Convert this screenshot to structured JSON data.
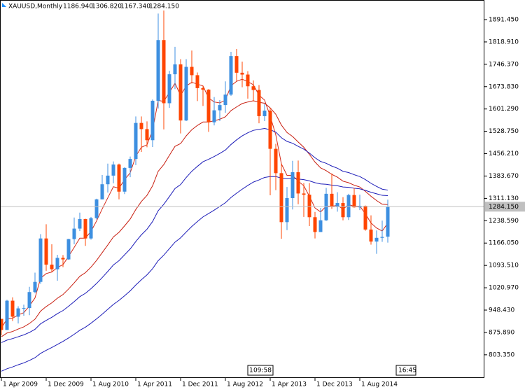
{
  "chart_data": {
    "type": "candlestick",
    "title": "XAUUSD,Monthly",
    "last_bar_labels": [
      "1186.940",
      "1306.820",
      "1167.340",
      "1284.150"
    ],
    "annotations": [
      "1",
      "09:58",
      "16:45"
    ],
    "up_color": "#3d8fe0",
    "down_color": "#ff4500",
    "categories": [
      "1 Apr 2009",
      null,
      null,
      null,
      null,
      null,
      null,
      null,
      "1 Dec 2009",
      null,
      null,
      null,
      null,
      null,
      null,
      null,
      "1 Aug 2010",
      null,
      null,
      null,
      null,
      null,
      null,
      null,
      "1 Apr 2011",
      null,
      null,
      null,
      null,
      null,
      null,
      null,
      "1 Dec 2011",
      null,
      null,
      null,
      null,
      null,
      null,
      null,
      "1 Aug 2012",
      null,
      null,
      null,
      null,
      null,
      null,
      null,
      "1 Apr 2013",
      null,
      null,
      null,
      null,
      null,
      null,
      null,
      "1 Dec 2013",
      null,
      null,
      null,
      null,
      null,
      null,
      null,
      "1 Aug 2014",
      null,
      null,
      null,
      null,
      null
    ],
    "open": [
      920,
      884,
      979,
      927,
      954,
      955,
      1007,
      1040,
      1181,
      1096,
      1081,
      1118,
      1113,
      1179,
      1213,
      1244,
      1181,
      1247,
      1308,
      1357,
      1385,
      1421,
      1333,
      1410,
      1439,
      1556,
      1536,
      1500,
      1628,
      1825,
      1620,
      1714,
      1746,
      1564,
      1738,
      1711,
      1669,
      1664,
      1558,
      1597,
      1614,
      1648,
      1773,
      1719,
      1713,
      1675,
      1663,
      1578,
      1596,
      1472,
      1393,
      1234,
      1312,
      1396,
      1327,
      1323,
      1250,
      1202,
      1240,
      1326,
      1284,
      1296,
      1250,
      1322,
      1282,
      1287,
      1210,
      1171,
      1183,
      1186.94
    ],
    "high": [
      920,
      982,
      990,
      961,
      966,
      1024,
      1070,
      1195,
      1227,
      1162,
      1128,
      1127,
      1180,
      1249,
      1265,
      1245,
      1251,
      1310,
      1387,
      1424,
      1431,
      1424,
      1412,
      1447,
      1577,
      1577,
      1561,
      1632,
      1911,
      1921,
      1725,
      1803,
      1763,
      1763,
      1791,
      1720,
      1677,
      1666,
      1640,
      1630,
      1691,
      1787,
      1796,
      1755,
      1724,
      1694,
      1679,
      1617,
      1605,
      1488,
      1424,
      1348,
      1433,
      1434,
      1361,
      1361,
      1267,
      1280,
      1345,
      1392,
      1331,
      1315,
      1326,
      1345,
      1323,
      1288,
      1256,
      1207,
      1239,
      1306.82
    ],
    "low": [
      866,
      884,
      913,
      905,
      930,
      932,
      1003,
      1034,
      1076,
      1072,
      1044,
      1088,
      1112,
      1162,
      1205,
      1157,
      1177,
      1243,
      1308,
      1330,
      1360,
      1308,
      1325,
      1380,
      1419,
      1462,
      1477,
      1478,
      1603,
      1535,
      1605,
      1666,
      1522,
      1562,
      1684,
      1627,
      1611,
      1527,
      1548,
      1562,
      1589,
      1644,
      1692,
      1672,
      1635,
      1626,
      1555,
      1562,
      1321,
      1338,
      1180,
      1208,
      1275,
      1292,
      1251,
      1221,
      1181,
      1202,
      1238,
      1277,
      1268,
      1240,
      1241,
      1281,
      1273,
      1206,
      1161,
      1131,
      1170,
      1167.34
    ],
    "close": [
      884,
      979,
      927,
      954,
      955,
      1007,
      1040,
      1181,
      1096,
      1081,
      1118,
      1113,
      1179,
      1213,
      1244,
      1181,
      1247,
      1308,
      1357,
      1385,
      1421,
      1333,
      1410,
      1439,
      1556,
      1536,
      1500,
      1628,
      1825,
      1620,
      1714,
      1746,
      1564,
      1738,
      1711,
      1669,
      1664,
      1558,
      1597,
      1614,
      1648,
      1773,
      1719,
      1713,
      1675,
      1663,
      1578,
      1596,
      1472,
      1393,
      1234,
      1312,
      1396,
      1327,
      1323,
      1250,
      1202,
      1240,
      1326,
      1284,
      1296,
      1250,
      1322,
      1282,
      1287,
      1210,
      1171,
      1183,
      1186,
      1284.15
    ],
    "lines": [
      {
        "color": "#d42a1a",
        "values": [
          890,
          920,
          922,
          933,
          940,
          962,
          988,
          1052,
          1067,
          1072,
          1087,
          1096,
          1123,
          1152,
          1182,
          1182,
          1204,
          1238,
          1277,
          1313,
          1349,
          1344,
          1372,
          1394,
          1448,
          1477,
          1485,
          1532,
          1629,
          1626,
          1655,
          1685,
          1645,
          1676,
          1688,
          1682,
          1676,
          1637,
          1624,
          1621,
          1630,
          1677,
          1691,
          1698,
          1690,
          1680,
          1646,
          1630,
          1578,
          1517,
          1423,
          1386,
          1386,
          1367,
          1352,
          1318,
          1280,
          1267,
          1286,
          1285,
          1289,
          1276,
          1291,
          1285,
          1286,
          1261,
          1231,
          1215,
          1205,
          1231
        ]
      },
      {
        "color": "#c81e10",
        "values": [
          862,
          874,
          879,
          887,
          894,
          905,
          919,
          945,
          960,
          972,
          987,
          999,
          1017,
          1037,
          1058,
          1070,
          1088,
          1110,
          1135,
          1160,
          1186,
          1201,
          1222,
          1244,
          1275,
          1301,
          1321,
          1352,
          1399,
          1421,
          1451,
          1480,
          1489,
          1514,
          1534,
          1548,
          1559,
          1559,
          1563,
          1568,
          1576,
          1596,
          1608,
          1619,
          1624,
          1628,
          1623,
          1620,
          1605,
          1584,
          1549,
          1525,
          1512,
          1494,
          1477,
          1454,
          1429,
          1410,
          1401,
          1389,
          1380,
          1367,
          1362,
          1354,
          1348,
          1334,
          1318,
          1304,
          1292,
          1291
        ]
      },
      {
        "color": "#1c1cb8",
        "values": [
          843,
          851,
          856,
          862,
          868,
          876,
          886,
          904,
          915,
          925,
          937,
          947,
          961,
          976,
          992,
          1003,
          1018,
          1035,
          1054,
          1074,
          1095,
          1109,
          1128,
          1147,
          1171,
          1193,
          1211,
          1236,
          1271,
          1292,
          1317,
          1343,
          1356,
          1379,
          1399,
          1415,
          1430,
          1438,
          1447,
          1457,
          1468,
          1486,
          1501,
          1514,
          1524,
          1532,
          1535,
          1538,
          1534,
          1526,
          1508,
          1496,
          1490,
          1480,
          1471,
          1458,
          1443,
          1431,
          1425,
          1416,
          1409,
          1399,
          1395,
          1388,
          1382,
          1372,
          1360,
          1350,
          1341,
          1338
        ]
      },
      {
        "color": "#1c1cb8",
        "values": [
          750,
          758,
          764,
          771,
          777,
          785,
          794,
          808,
          818,
          827,
          837,
          847,
          858,
          870,
          883,
          893,
          906,
          920,
          935,
          951,
          967,
          980,
          995,
          1011,
          1030,
          1047,
          1063,
          1083,
          1109,
          1127,
          1148,
          1169,
          1183,
          1202,
          1220,
          1236,
          1251,
          1262,
          1273,
          1285,
          1297,
          1314,
          1328,
          1341,
          1353,
          1364,
          1371,
          1379,
          1382,
          1382,
          1377,
          1375,
          1376,
          1374,
          1372,
          1368,
          1362,
          1358,
          1357,
          1354,
          1352,
          1348,
          1347,
          1344,
          1342,
          1337,
          1331,
          1326,
          1321,
          1320
        ]
      }
    ],
    "ylim": [
      728.04,
      1955.07
    ],
    "yticks": [
      {
        "value": 1891.45,
        "label": "1891.450"
      },
      {
        "value": 1818.91,
        "label": "1818.910"
      },
      {
        "value": 1746.37,
        "label": "1746.370"
      },
      {
        "value": 1673.83,
        "label": "1673.830"
      },
      {
        "value": 1601.29,
        "label": "1601.290"
      },
      {
        "value": 1528.75,
        "label": "1528.750"
      },
      {
        "value": 1456.21,
        "label": "1456.210"
      },
      {
        "value": 1383.67,
        "label": "1383.670"
      },
      {
        "value": 1311.13,
        "label": "1311.130"
      },
      {
        "value": 1238.59,
        "label": "1238.590"
      },
      {
        "value": 1166.05,
        "label": "1166.050"
      },
      {
        "value": 1093.51,
        "label": "1093.510"
      },
      {
        "value": 1020.97,
        "label": "1020.970"
      },
      {
        "value": 948.43,
        "label": "948.430"
      },
      {
        "value": 875.89,
        "label": "875.890"
      },
      {
        "value": 803.35,
        "label": "803.350"
      }
    ],
    "grid": false
  }
}
